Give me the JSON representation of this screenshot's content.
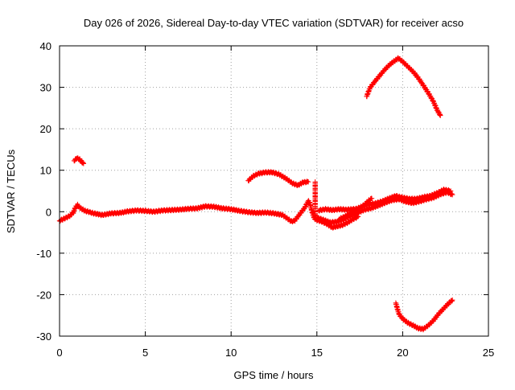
{
  "chart_data": {
    "type": "scatter",
    "title": "Day 026 of 2026, Sidereal Day-to-day VTEC variation (SDTVAR) for receiver acso",
    "xlabel": "GPS time / hours",
    "ylabel": "SDTVAR / TECUs",
    "xlim": [
      0,
      25
    ],
    "ylim": [
      -30,
      40
    ],
    "xticks": [
      0,
      5,
      10,
      15,
      20,
      25
    ],
    "yticks": [
      -30,
      -20,
      -10,
      0,
      10,
      20,
      30,
      40
    ],
    "grid": true,
    "legend": "none",
    "marker": "plus",
    "series": [
      {
        "name": "main trace",
        "color": "#ff0000",
        "points": [
          [
            0,
            -2.2
          ],
          [
            0.3,
            -1.6
          ],
          [
            0.6,
            -1.0
          ],
          [
            0.8,
            -0.2
          ],
          [
            0.95,
            1.2
          ],
          [
            1.05,
            1.6
          ],
          [
            1.2,
            0.9
          ],
          [
            1.5,
            0.2
          ],
          [
            2.0,
            -0.4
          ],
          [
            2.5,
            -0.8
          ],
          [
            3.0,
            -0.4
          ],
          [
            3.5,
            -0.3
          ],
          [
            4.0,
            0.1
          ],
          [
            4.5,
            0.3
          ],
          [
            5.0,
            0.2
          ],
          [
            5.5,
            0.0
          ],
          [
            6.0,
            0.3
          ],
          [
            6.5,
            0.4
          ],
          [
            7.0,
            0.5
          ],
          [
            7.5,
            0.7
          ],
          [
            8.0,
            0.8
          ],
          [
            8.5,
            1.3
          ],
          [
            9.0,
            1.2
          ],
          [
            9.5,
            0.8
          ],
          [
            10.0,
            0.6
          ],
          [
            10.5,
            0.2
          ],
          [
            11.0,
            -0.1
          ],
          [
            11.5,
            -0.3
          ],
          [
            12.0,
            -0.2
          ],
          [
            12.5,
            -0.4
          ],
          [
            13.0,
            -0.8
          ],
          [
            13.5,
            -2.3
          ],
          [
            13.7,
            -2.2
          ],
          [
            14.0,
            -0.6
          ],
          [
            14.3,
            1.0
          ],
          [
            14.5,
            2.6
          ],
          [
            14.6,
            2.0
          ],
          [
            14.7,
            0.2
          ],
          [
            14.85,
            -1.6
          ],
          [
            15.0,
            -2.0
          ],
          [
            15.3,
            -2.4
          ],
          [
            15.6,
            -3.0
          ],
          [
            15.9,
            -3.8
          ],
          [
            16.2,
            -3.5
          ],
          [
            16.5,
            -3.2
          ],
          [
            16.8,
            -2.6
          ],
          [
            17.1,
            -1.8
          ],
          [
            17.4,
            -1.2
          ]
        ]
      },
      {
        "name": "late trace",
        "color": "#ff0000",
        "points": [
          [
            16.3,
            -1.8
          ],
          [
            16.7,
            -1.0
          ],
          [
            17.2,
            0.5
          ],
          [
            17.6,
            1.2
          ],
          [
            18.0,
            1.8
          ],
          [
            18.4,
            2.0
          ],
          [
            18.8,
            2.5
          ],
          [
            19.2,
            3.2
          ],
          [
            19.6,
            3.8
          ],
          [
            20.0,
            3.4
          ],
          [
            20.4,
            3.1
          ],
          [
            20.8,
            3.1
          ],
          [
            21.2,
            3.5
          ],
          [
            21.6,
            3.8
          ],
          [
            22.0,
            4.5
          ],
          [
            22.4,
            5.3
          ],
          [
            22.8,
            5.0
          ]
        ]
      },
      {
        "name": "lower late trace",
        "color": "#ff0000",
        "points": [
          [
            17.0,
            -0.8
          ],
          [
            17.4,
            -0.2
          ],
          [
            17.8,
            0.5
          ],
          [
            18.2,
            0.9
          ],
          [
            18.6,
            1.5
          ],
          [
            19.0,
            2.2
          ],
          [
            19.4,
            2.8
          ],
          [
            19.8,
            3.0
          ],
          [
            20.2,
            2.4
          ],
          [
            20.6,
            2.1
          ],
          [
            21.0,
            2.5
          ],
          [
            21.4,
            3.0
          ],
          [
            21.8,
            3.4
          ],
          [
            22.2,
            4.2
          ],
          [
            22.6,
            4.7
          ],
          [
            22.9,
            4.1
          ]
        ]
      },
      {
        "name": "rising segment",
        "color": "#ff0000",
        "points": [
          [
            15.0,
            -1.4
          ],
          [
            15.4,
            -2.0
          ],
          [
            15.8,
            -2.6
          ],
          [
            16.2,
            -2.4
          ],
          [
            16.6,
            -1.8
          ],
          [
            17.0,
            -0.8
          ],
          [
            17.4,
            0.6
          ],
          [
            17.8,
            1.8
          ],
          [
            18.0,
            2.6
          ],
          [
            18.2,
            3.2
          ]
        ]
      },
      {
        "name": "vertical drop near 14.9h",
        "color": "#ff0000",
        "points": [
          [
            14.9,
            7.2
          ],
          [
            14.9,
            6.0
          ],
          [
            14.9,
            5.0
          ],
          [
            14.9,
            4.0
          ],
          [
            14.9,
            3.0
          ],
          [
            14.9,
            2.0
          ],
          [
            14.9,
            1.0
          ],
          [
            14.9,
            0.0
          ],
          [
            14.9,
            -1.0
          ]
        ]
      },
      {
        "name": "flat segment 15-17.5h",
        "color": "#ff0000",
        "points": [
          [
            15.1,
            0.3
          ],
          [
            15.5,
            0.6
          ],
          [
            15.9,
            0.4
          ],
          [
            16.3,
            0.6
          ],
          [
            16.7,
            0.5
          ],
          [
            17.1,
            0.6
          ],
          [
            17.5,
            0.7
          ]
        ]
      },
      {
        "name": "middle arc",
        "color": "#ff0000",
        "points": [
          [
            11.0,
            7.5
          ],
          [
            11.3,
            8.6
          ],
          [
            11.6,
            9.2
          ],
          [
            12.0,
            9.5
          ],
          [
            12.4,
            9.5
          ],
          [
            12.8,
            9.0
          ],
          [
            13.2,
            8.0
          ],
          [
            13.6,
            6.8
          ],
          [
            13.9,
            6.4
          ],
          [
            14.2,
            7.1
          ],
          [
            14.5,
            7.2
          ]
        ]
      },
      {
        "name": "short segment near 1h",
        "color": "#ff0000",
        "points": [
          [
            0.85,
            12.3
          ],
          [
            1.0,
            12.9
          ],
          [
            1.15,
            12.7
          ],
          [
            1.3,
            12.0
          ],
          [
            1.4,
            11.6
          ]
        ]
      },
      {
        "name": "upper arc",
        "color": "#ff0000",
        "points": [
          [
            17.9,
            27.8
          ],
          [
            18.1,
            29.9
          ],
          [
            18.3,
            31.0
          ],
          [
            18.6,
            32.5
          ],
          [
            18.9,
            34.0
          ],
          [
            19.2,
            35.3
          ],
          [
            19.5,
            36.3
          ],
          [
            19.75,
            37.0
          ],
          [
            20.0,
            36.2
          ],
          [
            20.3,
            35.0
          ],
          [
            20.6,
            33.8
          ],
          [
            20.9,
            32.3
          ],
          [
            21.2,
            30.5
          ],
          [
            21.5,
            28.6
          ],
          [
            21.8,
            26.5
          ],
          [
            22.0,
            24.6
          ],
          [
            22.2,
            23.2
          ]
        ]
      },
      {
        "name": "lower arc",
        "color": "#ff0000",
        "points": [
          [
            19.6,
            -22.0
          ],
          [
            19.7,
            -23.5
          ],
          [
            19.8,
            -24.8
          ],
          [
            20.0,
            -25.8
          ],
          [
            20.3,
            -26.8
          ],
          [
            20.6,
            -27.4
          ],
          [
            20.9,
            -28.1
          ],
          [
            21.2,
            -28.3
          ],
          [
            21.5,
            -27.4
          ],
          [
            21.8,
            -26.2
          ],
          [
            22.1,
            -24.6
          ],
          [
            22.4,
            -23.3
          ],
          [
            22.7,
            -22.0
          ],
          [
            22.9,
            -21.3
          ]
        ]
      }
    ]
  }
}
